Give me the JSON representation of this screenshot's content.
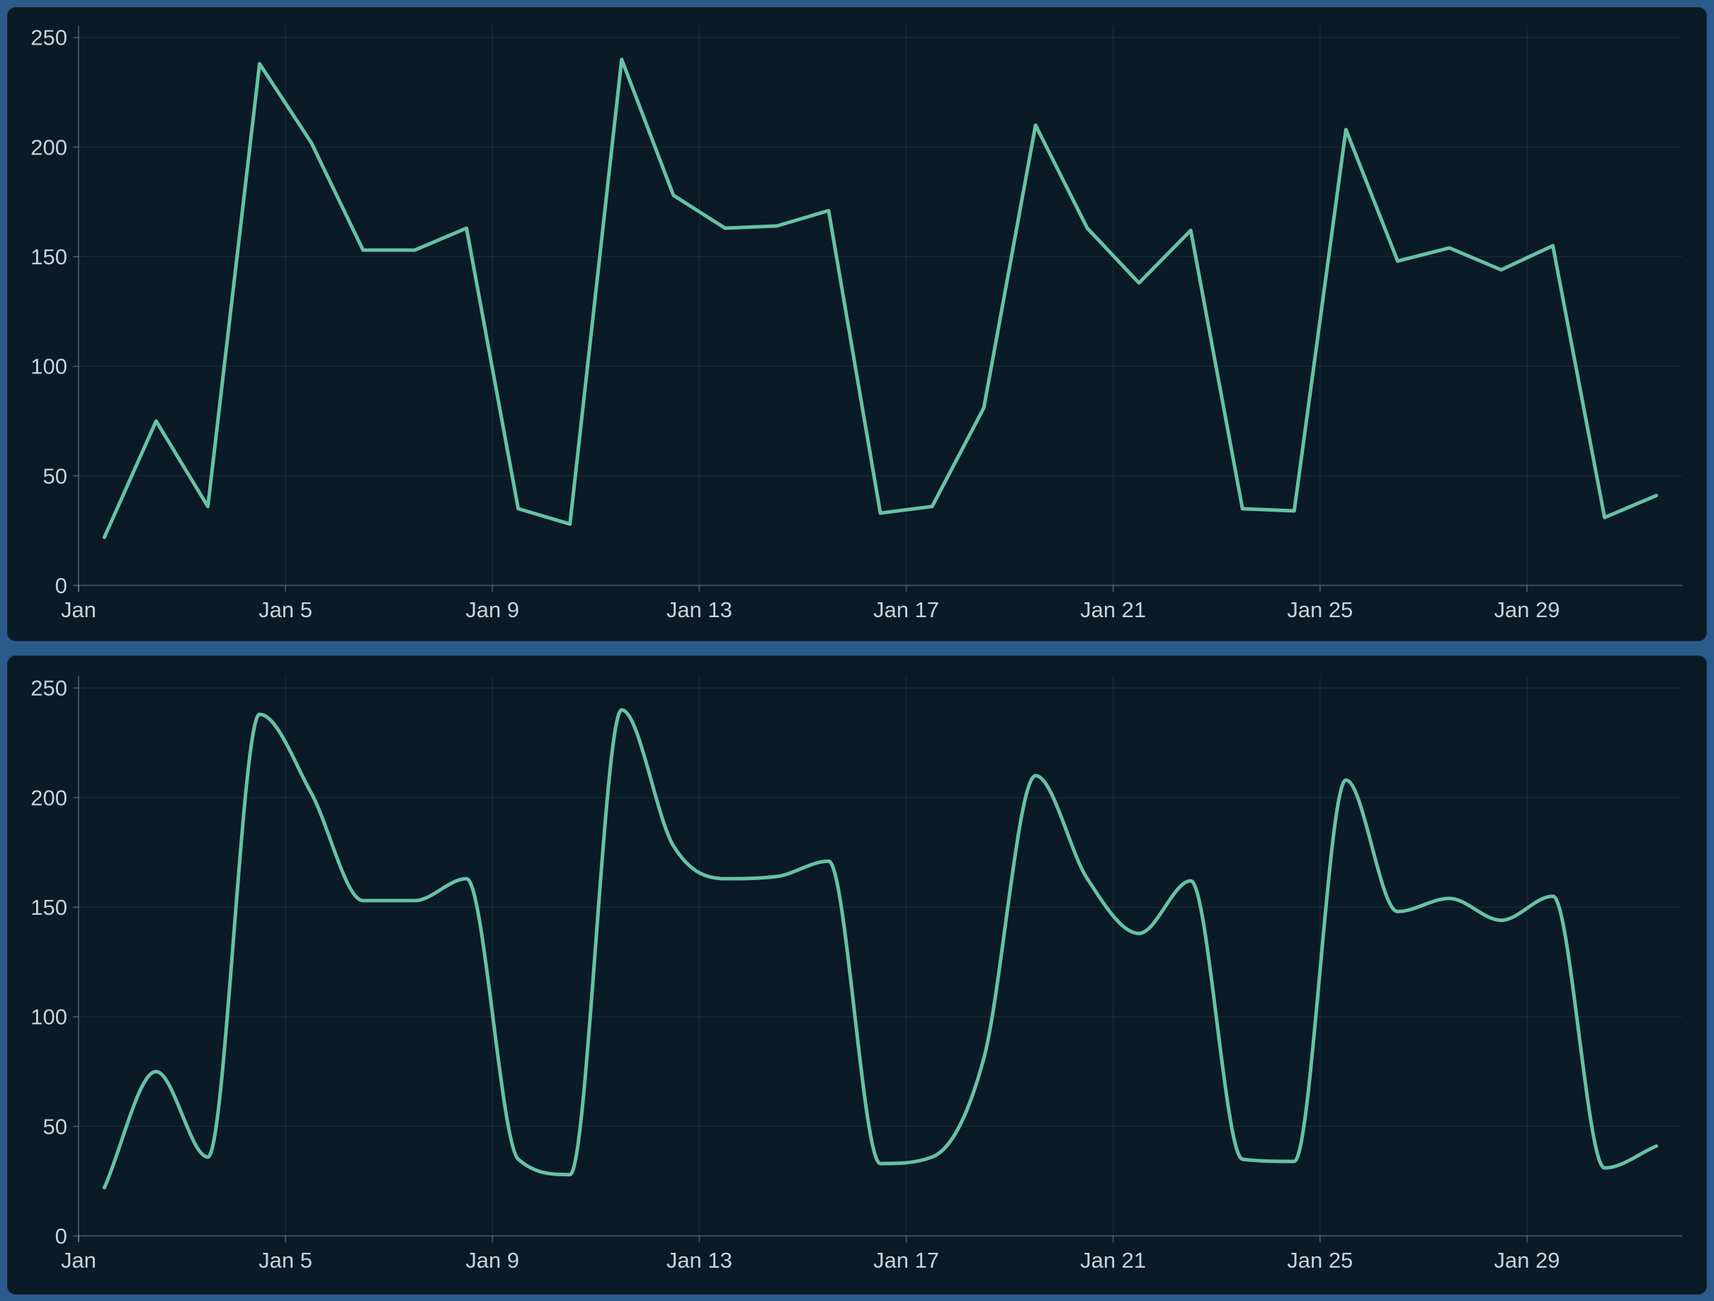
{
  "colors": {
    "page_background": "#2b5b8c",
    "panel_background": "#0a1a26",
    "line": "#66c2a5",
    "grid": "rgba(140,175,200,0.10)",
    "axis": "rgba(165,195,215,0.32)",
    "tick_label": "#c7d2db"
  },
  "chart_data": [
    {
      "type": "line",
      "interpolation": "linear",
      "title": "",
      "xlabel": "",
      "ylabel": "",
      "legend": null,
      "grid": true,
      "categories": [
        "Jan 1",
        "Jan 2",
        "Jan 3",
        "Jan 4",
        "Jan 5",
        "Jan 6",
        "Jan 7",
        "Jan 8",
        "Jan 9",
        "Jan 10",
        "Jan 11",
        "Jan 12",
        "Jan 13",
        "Jan 14",
        "Jan 15",
        "Jan 16",
        "Jan 17",
        "Jan 18",
        "Jan 19",
        "Jan 20",
        "Jan 21",
        "Jan 22",
        "Jan 23",
        "Jan 24",
        "Jan 25",
        "Jan 26",
        "Jan 27",
        "Jan 28",
        "Jan 29",
        "Jan 30",
        "Jan 31"
      ],
      "values": [
        22,
        75,
        36,
        238,
        202,
        153,
        153,
        163,
        35,
        28,
        240,
        178,
        163,
        164,
        171,
        33,
        36,
        81,
        210,
        163,
        138,
        162,
        35,
        34,
        208,
        148,
        154,
        144,
        155,
        31,
        41
      ],
      "x_tick_labels": [
        "Jan",
        "Jan 5",
        "Jan 9",
        "Jan 13",
        "Jan 17",
        "Jan 21",
        "Jan 25",
        "Jan 29"
      ],
      "x_tick_day_index": [
        0,
        4,
        8,
        12,
        16,
        20,
        24,
        28
      ],
      "y_ticks": [
        0,
        50,
        100,
        150,
        200,
        250
      ],
      "ylim": [
        0,
        250
      ]
    },
    {
      "type": "line",
      "interpolation": "smooth-monotone",
      "title": "",
      "xlabel": "",
      "ylabel": "",
      "legend": null,
      "grid": true,
      "categories": [
        "Jan 1",
        "Jan 2",
        "Jan 3",
        "Jan 4",
        "Jan 5",
        "Jan 6",
        "Jan 7",
        "Jan 8",
        "Jan 9",
        "Jan 10",
        "Jan 11",
        "Jan 12",
        "Jan 13",
        "Jan 14",
        "Jan 15",
        "Jan 16",
        "Jan 17",
        "Jan 18",
        "Jan 19",
        "Jan 20",
        "Jan 21",
        "Jan 22",
        "Jan 23",
        "Jan 24",
        "Jan 25",
        "Jan 26",
        "Jan 27",
        "Jan 28",
        "Jan 29",
        "Jan 30",
        "Jan 31"
      ],
      "values": [
        22,
        75,
        36,
        238,
        202,
        153,
        153,
        163,
        35,
        28,
        240,
        178,
        163,
        164,
        171,
        33,
        36,
        81,
        210,
        163,
        138,
        162,
        35,
        34,
        208,
        148,
        154,
        144,
        155,
        31,
        41
      ],
      "x_tick_labels": [
        "Jan",
        "Jan 5",
        "Jan 9",
        "Jan 13",
        "Jan 17",
        "Jan 21",
        "Jan 25",
        "Jan 29"
      ],
      "x_tick_day_index": [
        0,
        4,
        8,
        12,
        16,
        20,
        24,
        28
      ],
      "y_ticks": [
        0,
        50,
        100,
        150,
        200,
        250
      ],
      "ylim": [
        0,
        250
      ]
    }
  ]
}
